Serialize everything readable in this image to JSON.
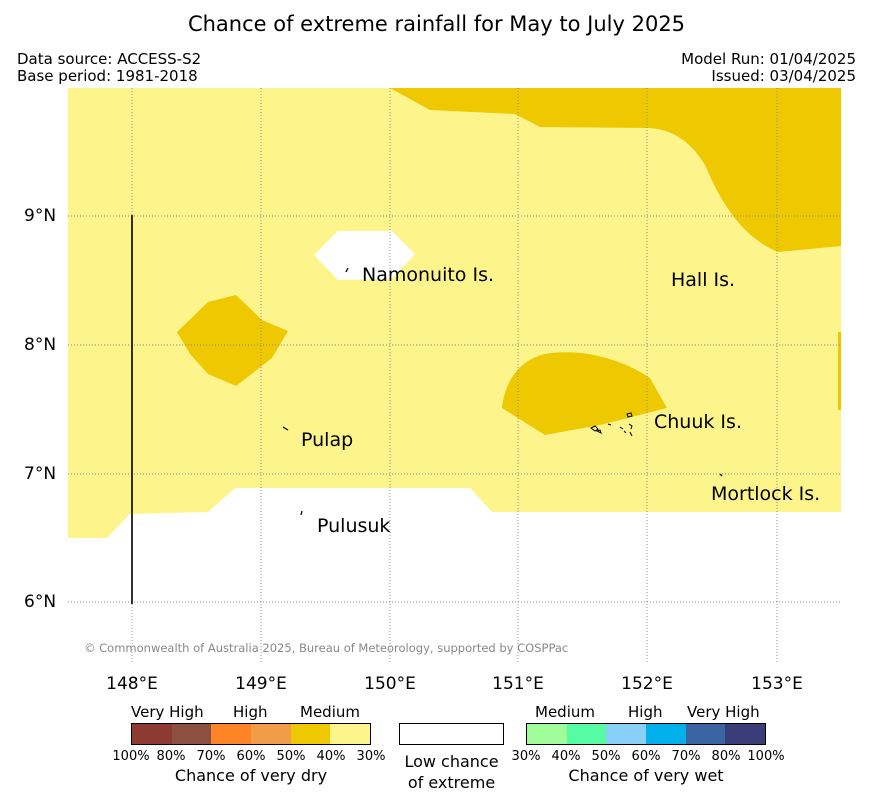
{
  "title": "Chance of extreme rainfall for May to July 2025",
  "meta": {
    "data_source": "Data source: ACCESS-S2",
    "base_period": "Base period: 1981-2018",
    "model_run": "Model Run: 01/04/2025",
    "issued": "Issued: 03/04/2025"
  },
  "copyright": "© Commonwealth of Australia 2025, Bureau of Meteorology, supported by COSPPac",
  "axes": {
    "lon_ticks": [
      "148°E",
      "149°E",
      "150°E",
      "151°E",
      "152°E",
      "153°E"
    ],
    "lat_ticks": [
      "9°N",
      "8°N",
      "7°N",
      "6°N"
    ]
  },
  "places": {
    "namonuito": "Namonuito Is.",
    "hall": "Hall Is.",
    "pulap": "Pulap",
    "chuuk": "Chuuk Is.",
    "mortlock": "Mortlock Is.",
    "pulusuk": "Pulusuk"
  },
  "colors": {
    "land_low": "#ffffff",
    "medium_dry": "#eec800",
    "light_dry": "#fdf48c",
    "grid": "#888888"
  },
  "legend": {
    "dry": {
      "cat_very_high": "Very High",
      "cat_high": "High",
      "cat_medium": "Medium",
      "colors": [
        "#8c3a32",
        "#8c5040",
        "#ff8426",
        "#f09c48",
        "#eec800",
        "#fdf48c"
      ],
      "ticks": [
        "100%",
        "80%",
        "70%",
        "60%",
        "50%",
        "40%",
        "30%"
      ],
      "caption": "Chance of very dry"
    },
    "neutral": {
      "color": "#ffffff",
      "caption_line1": "Low chance",
      "caption_line2": "of extreme"
    },
    "wet": {
      "cat_medium": "Medium",
      "cat_high": "High",
      "cat_very_high": "Very High",
      "colors": [
        "#9ffc98",
        "#56fca4",
        "#88d0f8",
        "#00b0ec",
        "#3a64a2",
        "#3b3d78"
      ],
      "ticks": [
        "30%",
        "40%",
        "50%",
        "60%",
        "70%",
        "80%",
        "100%"
      ],
      "caption": "Chance of very wet"
    }
  }
}
